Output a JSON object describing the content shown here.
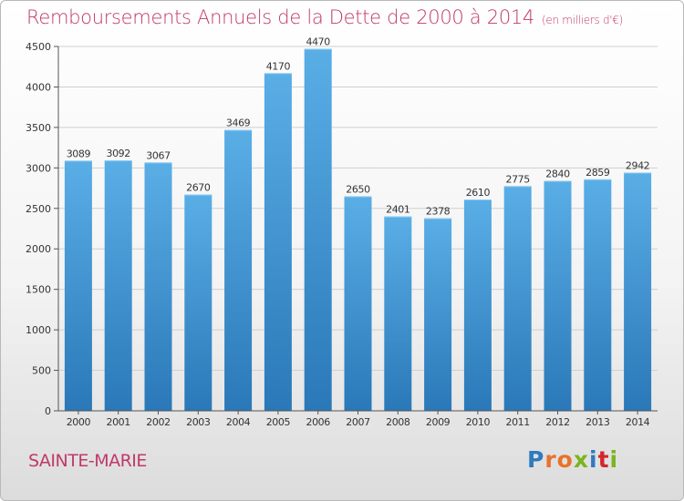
{
  "header": {
    "title": "Remboursements Annuels de la Dette de 2000 à 2014",
    "subtitle": "(en milliers d'€)"
  },
  "footer": {
    "town": "SAINTE-MARIE",
    "logo": "Proxiti"
  },
  "colors": {
    "accent": "#c0396a",
    "bar_top": "#5aaee6",
    "bar_bottom": "#2a78b8"
  },
  "chart_data": {
    "type": "bar",
    "title": "Remboursements Annuels de la Dette de 2000 à 2014",
    "subtitle": "(en milliers d'€)",
    "categories": [
      "2000",
      "2001",
      "2002",
      "2003",
      "2004",
      "2005",
      "2006",
      "2007",
      "2008",
      "2009",
      "2010",
      "2011",
      "2012",
      "2013",
      "2014"
    ],
    "values": [
      3089,
      3092,
      3067,
      2670,
      3469,
      4170,
      4470,
      2650,
      2401,
      2378,
      2610,
      2775,
      2840,
      2859,
      2942
    ],
    "ylim": [
      0,
      4500
    ],
    "yticks": [
      0,
      500,
      1000,
      1500,
      2000,
      2500,
      3000,
      3500,
      4000,
      4500
    ],
    "grid": true,
    "data_labels": true
  }
}
